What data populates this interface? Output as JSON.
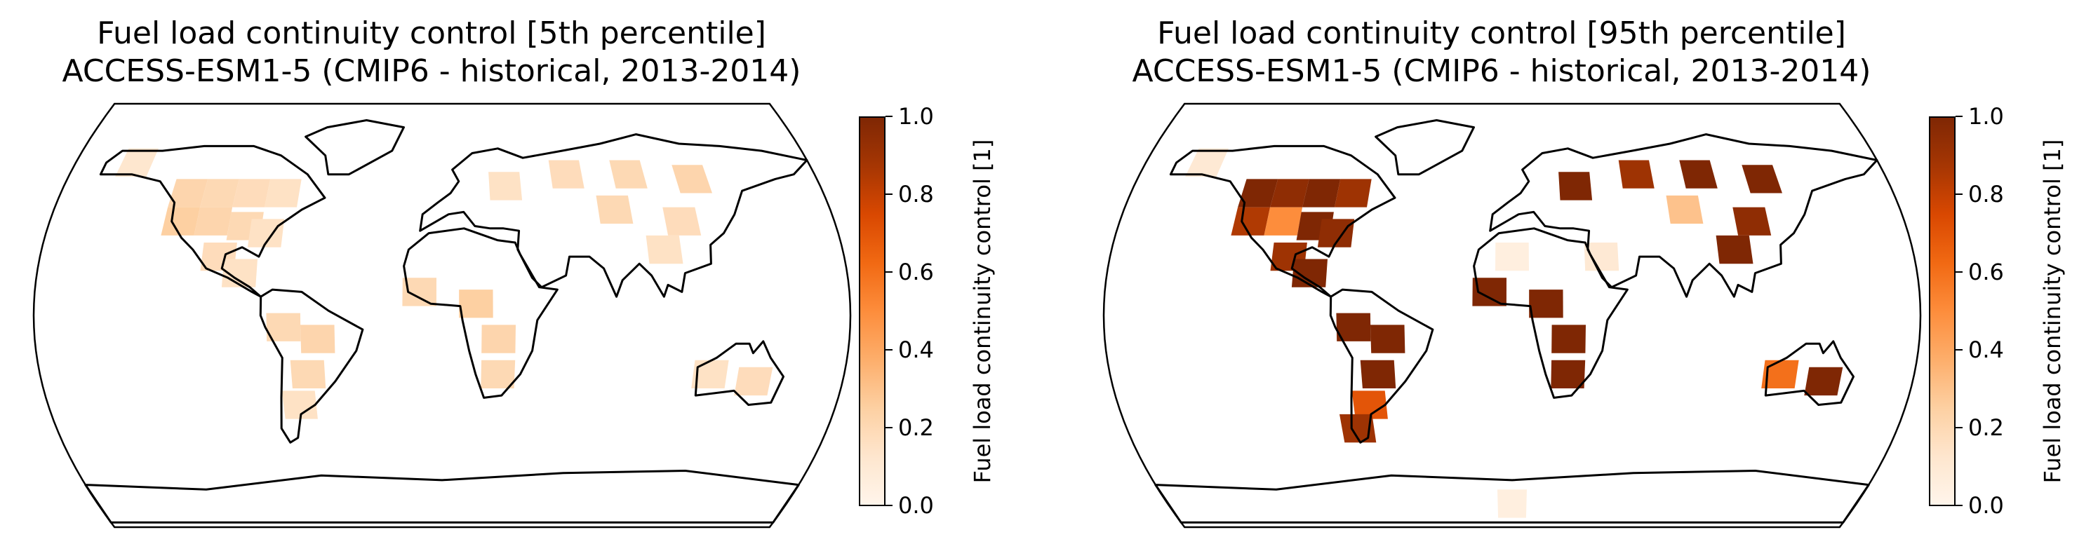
{
  "colormap": {
    "name": "Oranges",
    "stops": [
      "#fff5eb",
      "#fee6ce",
      "#fdd0a2",
      "#fdae6b",
      "#fd8d3c",
      "#f16913",
      "#d94801",
      "#a63603",
      "#7f2704"
    ]
  },
  "panels": [
    {
      "id": "p5",
      "title_line1": "Fuel load continuity control [5th percentile]",
      "title_line2": "ACCESS-ESM1-5 (CMIP6 - historical, 2013-2014)",
      "colorbar": {
        "label": "Fuel load continuity control [1]",
        "ticks": [
          "0.0",
          "0.2",
          "0.4",
          "0.6",
          "0.8",
          "1.0"
        ],
        "range": [
          0,
          1
        ]
      },
      "chart_data": {
        "type": "heatmap",
        "projection": "Robinson",
        "variable": "fuel load continuity control",
        "grid_cells_lon_lat_value": [
          [
            -120,
            52,
            0.22
          ],
          [
            -105,
            52,
            0.2
          ],
          [
            -90,
            52,
            0.18
          ],
          [
            -75,
            52,
            0.15
          ],
          [
            -120,
            40,
            0.25
          ],
          [
            -105,
            40,
            0.22
          ],
          [
            -90,
            38,
            0.2
          ],
          [
            -80,
            35,
            0.15
          ],
          [
            -100,
            25,
            0.18
          ],
          [
            -90,
            18,
            0.15
          ],
          [
            -70,
            -5,
            0.2
          ],
          [
            -55,
            -10,
            0.22
          ],
          [
            -60,
            -25,
            0.2
          ],
          [
            -65,
            -38,
            0.15
          ],
          [
            -10,
            10,
            0.2
          ],
          [
            15,
            5,
            0.25
          ],
          [
            25,
            -10,
            0.22
          ],
          [
            25,
            -25,
            0.2
          ],
          [
            30,
            55,
            0.15
          ],
          [
            60,
            60,
            0.18
          ],
          [
            90,
            60,
            0.2
          ],
          [
            120,
            58,
            0.22
          ],
          [
            80,
            45,
            0.2
          ],
          [
            110,
            40,
            0.18
          ],
          [
            100,
            28,
            0.15
          ],
          [
            120,
            -25,
            0.15
          ],
          [
            140,
            -28,
            0.18
          ],
          [
            -150,
            65,
            0.12
          ]
        ]
      }
    },
    {
      "id": "p95",
      "title_line1": "Fuel load continuity control [95th percentile]",
      "title_line2": "ACCESS-ESM1-5 (CMIP6 - historical, 2013-2014)",
      "colorbar": {
        "label": "Fuel load continuity control [1]",
        "ticks": [
          "0.0",
          "0.2",
          "0.4",
          "0.6",
          "0.8",
          "1.0"
        ],
        "range": [
          0,
          1
        ]
      },
      "chart_data": {
        "type": "heatmap",
        "projection": "Robinson",
        "variable": "fuel load continuity control",
        "grid_cells_lon_lat_value": [
          [
            -120,
            52,
            1.0
          ],
          [
            -105,
            52,
            0.95
          ],
          [
            -90,
            52,
            1.0
          ],
          [
            -75,
            52,
            0.9
          ],
          [
            -120,
            40,
            0.85
          ],
          [
            -105,
            40,
            0.5
          ],
          [
            -90,
            38,
            1.0
          ],
          [
            -80,
            35,
            0.95
          ],
          [
            -100,
            25,
            0.9
          ],
          [
            -90,
            18,
            1.0
          ],
          [
            -70,
            -5,
            1.0
          ],
          [
            -55,
            -10,
            1.0
          ],
          [
            -60,
            -25,
            1.0
          ],
          [
            -65,
            -38,
            0.7
          ],
          [
            -10,
            10,
            1.0
          ],
          [
            15,
            5,
            1.0
          ],
          [
            25,
            -10,
            1.0
          ],
          [
            25,
            -25,
            1.0
          ],
          [
            30,
            55,
            1.0
          ],
          [
            60,
            60,
            0.9
          ],
          [
            90,
            60,
            1.0
          ],
          [
            120,
            58,
            1.0
          ],
          [
            80,
            45,
            0.3
          ],
          [
            110,
            40,
            0.95
          ],
          [
            100,
            28,
            1.0
          ],
          [
            120,
            -25,
            0.6
          ],
          [
            140,
            -28,
            1.0
          ],
          [
            -150,
            65,
            0.1
          ],
          [
            0,
            25,
            0.05
          ],
          [
            40,
            25,
            0.1
          ],
          [
            0,
            -80,
            0.05
          ],
          [
            -72,
            -48,
            0.9
          ]
        ]
      }
    }
  ]
}
